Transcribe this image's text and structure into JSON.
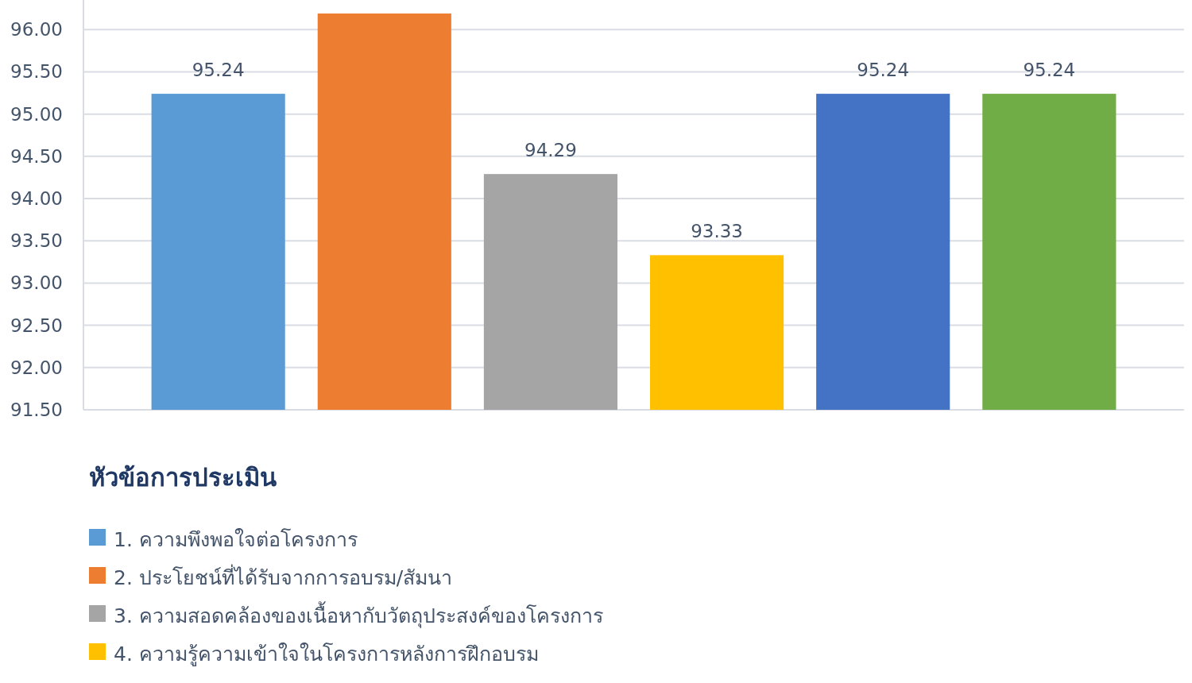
{
  "chart_data": {
    "type": "bar",
    "legend_title": "หัวข้อการประเมิน",
    "categories": [
      null
    ],
    "series": [
      {
        "name": "1. ความพึงพอใจต่อโครงการ",
        "color": "#5b9bd5",
        "values": [
          95.24
        ],
        "value_labels": [
          "95.24"
        ]
      },
      {
        "name": "2. ประโยชน์ที่ได้รับจากการอบรม/สัมนา",
        "color": "#ed7d31",
        "values": [
          96.19
        ],
        "value_labels": [
          null
        ]
      },
      {
        "name": "3. ความสอดคล้องของเนื้อหากับวัตถุประสงค์ของโครงการ",
        "color": "#a5a5a5",
        "values": [
          94.29
        ],
        "value_labels": [
          "94.29"
        ]
      },
      {
        "name": "4. ความรู้ความเข้าใจในโครงการหลังการฝึกอบรม",
        "color": "#ffc000",
        "values": [
          93.33
        ],
        "value_labels": [
          "93.33"
        ]
      },
      {
        "color": "#4472c4",
        "values": [
          95.24
        ],
        "value_labels": [
          "95.24"
        ]
      },
      {
        "color": "#70ad47",
        "values": [
          95.24
        ],
        "value_labels": [
          "95.24"
        ]
      }
    ],
    "ylim": [
      91.5,
      96.35
    ],
    "yticks": [
      {
        "value": 91.5,
        "label": "91.50"
      },
      {
        "value": 92,
        "label": "92.00"
      },
      {
        "value": 92.5,
        "label": "92.50"
      },
      {
        "value": 93,
        "label": "93.00"
      },
      {
        "value": 93.5,
        "label": "93.50"
      },
      {
        "value": 94,
        "label": "94.00"
      },
      {
        "value": 94.5,
        "label": "94.50"
      },
      {
        "value": 95,
        "label": "95.00"
      },
      {
        "value": 95.5,
        "label": "95.50"
      },
      {
        "value": 96,
        "label": "96.00"
      }
    ],
    "grid": "y",
    "legend": "bottom"
  }
}
